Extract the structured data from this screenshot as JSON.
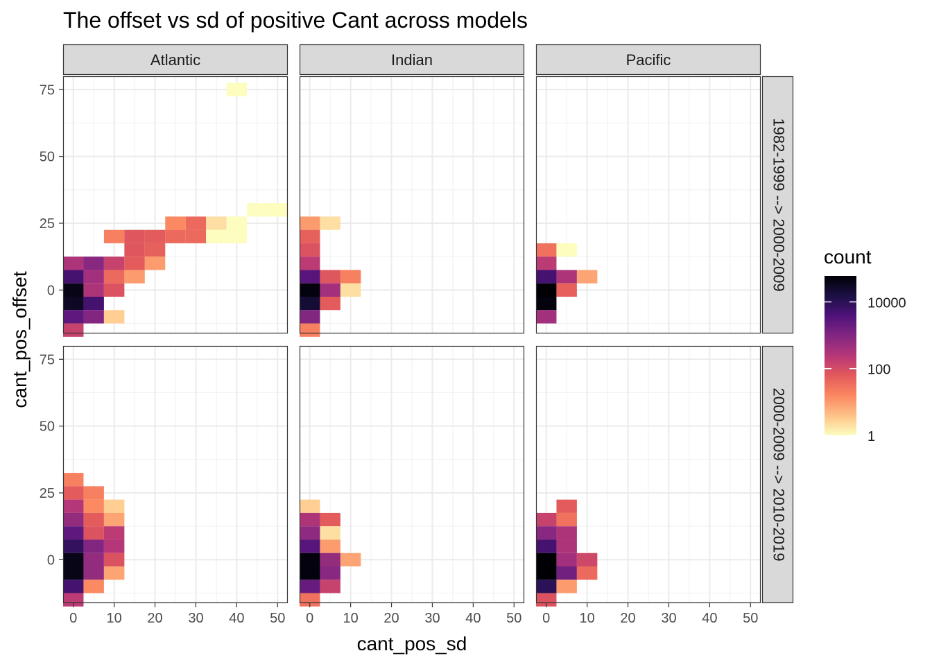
{
  "chart_data": {
    "type": "heatmap",
    "title": "The offset vs sd of positive Cant across models",
    "xlabel": "cant_pos_sd",
    "ylabel": "cant_pos_offset",
    "x_ticks": [
      0,
      10,
      20,
      30,
      40,
      50
    ],
    "y_ticks": [
      0,
      25,
      50,
      75
    ],
    "xlim": [
      -2.5,
      52.5
    ],
    "ylim": [
      -16.25,
      80
    ],
    "bin_width_x": 5,
    "bin_height_y": 5,
    "columns": [
      "Atlantic",
      "Indian",
      "Pacific"
    ],
    "rows": [
      "1982-1999 --> 2000-2009",
      "2000-2009 --> 2010-2019"
    ],
    "legend": {
      "title": "count",
      "scale": "log10",
      "ticks": [
        {
          "value": 1,
          "label": "1"
        },
        {
          "value": 100,
          "label": "100"
        },
        {
          "value": 10000,
          "label": "10000"
        }
      ],
      "max": 60000,
      "palette": [
        "#FCFDBF",
        "#FEC287",
        "#FB8861",
        "#E35A5B",
        "#B63679",
        "#822681",
        "#4F127B",
        "#1C1044",
        "#000004"
      ]
    },
    "panels": [
      {
        "column": "Atlantic",
        "row": "1982-1999 --> 2000-2009",
        "cells": [
          {
            "x": 0,
            "y": 10,
            "count": 300
          },
          {
            "x": 0,
            "y": 5,
            "count": 5000
          },
          {
            "x": 0,
            "y": 0,
            "count": 40000
          },
          {
            "x": 0,
            "y": -5,
            "count": 30000
          },
          {
            "x": 0,
            "y": -10,
            "count": 2500
          },
          {
            "x": 0,
            "y": -15,
            "count": 150
          },
          {
            "x": 5,
            "y": 10,
            "count": 800
          },
          {
            "x": 5,
            "y": 5,
            "count": 400
          },
          {
            "x": 5,
            "y": 0,
            "count": 300
          },
          {
            "x": 5,
            "y": -5,
            "count": 5000
          },
          {
            "x": 5,
            "y": -10,
            "count": 1000
          },
          {
            "x": 10,
            "y": 20,
            "count": 20
          },
          {
            "x": 10,
            "y": 10,
            "count": 150
          },
          {
            "x": 10,
            "y": 5,
            "count": 40
          },
          {
            "x": 10,
            "y": 0,
            "count": 80
          },
          {
            "x": 10,
            "y": -10,
            "count": 3
          },
          {
            "x": 15,
            "y": 20,
            "count": 70
          },
          {
            "x": 15,
            "y": 15,
            "count": 70
          },
          {
            "x": 15,
            "y": 10,
            "count": 60
          },
          {
            "x": 15,
            "y": 5,
            "count": 10
          },
          {
            "x": 20,
            "y": 20,
            "count": 60
          },
          {
            "x": 20,
            "y": 15,
            "count": 50
          },
          {
            "x": 20,
            "y": 10,
            "count": 10
          },
          {
            "x": 25,
            "y": 25,
            "count": 15
          },
          {
            "x": 25,
            "y": 20,
            "count": 40
          },
          {
            "x": 30,
            "y": 25,
            "count": 40
          },
          {
            "x": 30,
            "y": 20,
            "count": 40
          },
          {
            "x": 35,
            "y": 25,
            "count": 2
          },
          {
            "x": 35,
            "y": 20,
            "count": 1
          },
          {
            "x": 40,
            "y": 25,
            "count": 1
          },
          {
            "x": 40,
            "y": 20,
            "count": 1
          },
          {
            "x": 40,
            "y": 75,
            "count": 1
          },
          {
            "x": 45,
            "y": 30,
            "count": 1
          },
          {
            "x": 50,
            "y": 30,
            "count": 1
          }
        ]
      },
      {
        "column": "Indian",
        "row": "1982-1999 --> 2000-2009",
        "cells": [
          {
            "x": 0,
            "y": 25,
            "count": 10
          },
          {
            "x": 0,
            "y": 20,
            "count": 50
          },
          {
            "x": 0,
            "y": 15,
            "count": 80
          },
          {
            "x": 0,
            "y": 10,
            "count": 200
          },
          {
            "x": 0,
            "y": 5,
            "count": 3000
          },
          {
            "x": 0,
            "y": 0,
            "count": 50000
          },
          {
            "x": 0,
            "y": -5,
            "count": 20000
          },
          {
            "x": 0,
            "y": -10,
            "count": 1000
          },
          {
            "x": 0,
            "y": -15,
            "count": 20
          },
          {
            "x": 5,
            "y": 25,
            "count": 2
          },
          {
            "x": 5,
            "y": 5,
            "count": 70
          },
          {
            "x": 5,
            "y": 0,
            "count": 400
          },
          {
            "x": 5,
            "y": -5,
            "count": 60
          },
          {
            "x": 10,
            "y": 5,
            "count": 20
          },
          {
            "x": 10,
            "y": 0,
            "count": 2
          }
        ]
      },
      {
        "column": "Pacific",
        "row": "1982-1999 --> 2000-2009",
        "cells": [
          {
            "x": 0,
            "y": 15,
            "count": 30
          },
          {
            "x": 0,
            "y": 10,
            "count": 200
          },
          {
            "x": 0,
            "y": 5,
            "count": 5000
          },
          {
            "x": 0,
            "y": 0,
            "count": 60000
          },
          {
            "x": 0,
            "y": -5,
            "count": 50000
          },
          {
            "x": 0,
            "y": -10,
            "count": 400
          },
          {
            "x": 5,
            "y": 15,
            "count": 1
          },
          {
            "x": 5,
            "y": 5,
            "count": 300
          },
          {
            "x": 5,
            "y": 0,
            "count": 50
          },
          {
            "x": 10,
            "y": 5,
            "count": 8
          }
        ]
      },
      {
        "column": "Atlantic",
        "row": "2000-2009 --> 2010-2019",
        "cells": [
          {
            "x": 0,
            "y": 30,
            "count": 20
          },
          {
            "x": 0,
            "y": 25,
            "count": 60
          },
          {
            "x": 0,
            "y": 20,
            "count": 250
          },
          {
            "x": 0,
            "y": 15,
            "count": 600
          },
          {
            "x": 0,
            "y": 10,
            "count": 2500
          },
          {
            "x": 0,
            "y": 5,
            "count": 8000
          },
          {
            "x": 0,
            "y": 0,
            "count": 40000
          },
          {
            "x": 0,
            "y": -5,
            "count": 40000
          },
          {
            "x": 0,
            "y": -10,
            "count": 5000
          },
          {
            "x": 0,
            "y": -15,
            "count": 200
          },
          {
            "x": 5,
            "y": 25,
            "count": 20
          },
          {
            "x": 5,
            "y": 20,
            "count": 15
          },
          {
            "x": 5,
            "y": 15,
            "count": 60
          },
          {
            "x": 5,
            "y": 10,
            "count": 80
          },
          {
            "x": 5,
            "y": 5,
            "count": 1000
          },
          {
            "x": 5,
            "y": 0,
            "count": 600
          },
          {
            "x": 5,
            "y": -5,
            "count": 600
          },
          {
            "x": 5,
            "y": -10,
            "count": 15
          },
          {
            "x": 10,
            "y": 20,
            "count": 3
          },
          {
            "x": 10,
            "y": 15,
            "count": 8
          },
          {
            "x": 10,
            "y": 10,
            "count": 200
          },
          {
            "x": 10,
            "y": 5,
            "count": 250
          },
          {
            "x": 10,
            "y": 0,
            "count": 80
          },
          {
            "x": 10,
            "y": -5,
            "count": 8
          }
        ]
      },
      {
        "column": "Indian",
        "row": "2000-2009 --> 2010-2019",
        "cells": [
          {
            "x": 0,
            "y": 20,
            "count": 3
          },
          {
            "x": 0,
            "y": 15,
            "count": 300
          },
          {
            "x": 0,
            "y": 10,
            "count": 700
          },
          {
            "x": 0,
            "y": 5,
            "count": 3000
          },
          {
            "x": 0,
            "y": 0,
            "count": 50000
          },
          {
            "x": 0,
            "y": -5,
            "count": 50000
          },
          {
            "x": 0,
            "y": -10,
            "count": 2000
          },
          {
            "x": 0,
            "y": -15,
            "count": 30
          },
          {
            "x": 5,
            "y": 15,
            "count": 60
          },
          {
            "x": 5,
            "y": 10,
            "count": 2
          },
          {
            "x": 5,
            "y": 5,
            "count": 10
          },
          {
            "x": 5,
            "y": 0,
            "count": 600
          },
          {
            "x": 5,
            "y": -5,
            "count": 800
          },
          {
            "x": 5,
            "y": -10,
            "count": 150
          },
          {
            "x": 10,
            "y": 0,
            "count": 8
          }
        ]
      },
      {
        "column": "Pacific",
        "row": "2000-2009 --> 2010-2019",
        "cells": [
          {
            "x": 0,
            "y": 15,
            "count": 150
          },
          {
            "x": 0,
            "y": 10,
            "count": 800
          },
          {
            "x": 0,
            "y": 5,
            "count": 5000
          },
          {
            "x": 0,
            "y": 0,
            "count": 60000
          },
          {
            "x": 0,
            "y": -5,
            "count": 60000
          },
          {
            "x": 0,
            "y": -10,
            "count": 10000
          },
          {
            "x": 0,
            "y": -15,
            "count": 80
          },
          {
            "x": 5,
            "y": 20,
            "count": 60
          },
          {
            "x": 5,
            "y": 15,
            "count": 30
          },
          {
            "x": 5,
            "y": 10,
            "count": 300
          },
          {
            "x": 5,
            "y": 5,
            "count": 300
          },
          {
            "x": 5,
            "y": 0,
            "count": 400
          },
          {
            "x": 5,
            "y": -5,
            "count": 1500
          },
          {
            "x": 5,
            "y": -10,
            "count": 10
          },
          {
            "x": 10,
            "y": 0,
            "count": 120
          },
          {
            "x": 10,
            "y": -5,
            "count": 40
          }
        ]
      }
    ]
  }
}
